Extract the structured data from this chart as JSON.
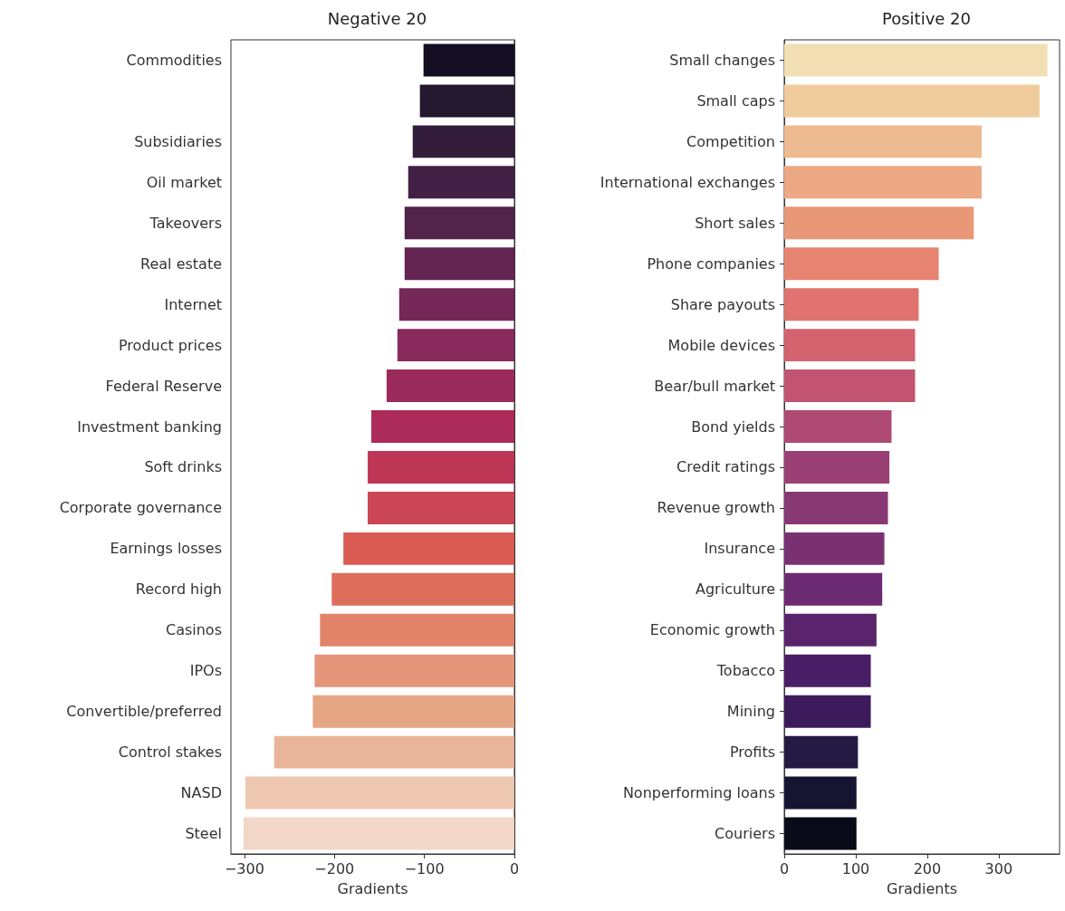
{
  "chart_data": [
    {
      "type": "bar",
      "orientation": "horizontal",
      "title": "Negative 20",
      "xlabel": "Gradients",
      "categories": [
        "Commodities",
        null,
        "Subsidiaries",
        "Oil market",
        "Takeovers",
        "Real estate",
        "Internet",
        "Product prices",
        "Federal Reserve",
        "Investment banking",
        "Soft drinks",
        "Corporate governance",
        "Earnings losses",
        "Record high",
        "Casinos",
        "IPOs",
        "Convertible/preferred",
        "Control stakes",
        "NASD",
        "Steel"
      ],
      "values": [
        -101,
        -105,
        -113,
        -118,
        -122,
        -122,
        -128,
        -130,
        -142,
        -159,
        -163,
        -163,
        -190,
        -203,
        -216,
        -222,
        -224,
        -267,
        -299,
        -301
      ],
      "colors": [
        "#150f23",
        "#24182f",
        "#331c3a",
        "#421f44",
        "#52234b",
        "#632452",
        "#752858",
        "#892a5c",
        "#9b2a5c",
        "#ad2b59",
        "#bd3656",
        "#cb4656",
        "#d95b54",
        "#de6e5b",
        "#e2836a",
        "#e4957a",
        "#e6a585",
        "#e8b59a",
        "#eec7b0",
        "#f2d7c8"
      ],
      "xlim": [
        -315,
        0
      ],
      "xticks": [
        {
          "value": -300,
          "label": "−300"
        },
        {
          "value": -200,
          "label": "−200"
        },
        {
          "value": -100,
          "label": "−100"
        },
        0
      ]
    },
    {
      "type": "bar",
      "orientation": "horizontal",
      "title": "Positive 20",
      "xlabel": "Gradients",
      "categories": [
        "Small changes",
        "Small caps",
        "Competition",
        "International exchanges",
        "Short sales",
        "Phone companies",
        "Share payouts",
        "Mobile devices",
        "Bear/bull market",
        "Bond yields",
        "Credit ratings",
        "Revenue growth",
        "Insurance",
        "Agriculture",
        "Economic growth",
        "Tobacco",
        "Mining",
        "Profits",
        "Nonperforming loans",
        "Couriers"
      ],
      "values": [
        368,
        357,
        276,
        276,
        265,
        216,
        188,
        183,
        183,
        150,
        147,
        145,
        140,
        137,
        129,
        121,
        121,
        103,
        101,
        101
      ],
      "colors": [
        "#f2e0b4",
        "#f0cc9c",
        "#eeba8f",
        "#eda983",
        "#e99877",
        "#e68471",
        "#e0726f",
        "#d4626f",
        "#c25472",
        "#ae4a74",
        "#9b4075",
        "#883873",
        "#7a3172",
        "#6b2a71",
        "#5a246d",
        "#4a1e67",
        "#3b1b5c",
        "#251a43",
        "#161430",
        "#0b0a18"
      ],
      "xlim": [
        0,
        385
      ],
      "xticks": [
        0,
        100,
        200,
        300
      ]
    }
  ]
}
